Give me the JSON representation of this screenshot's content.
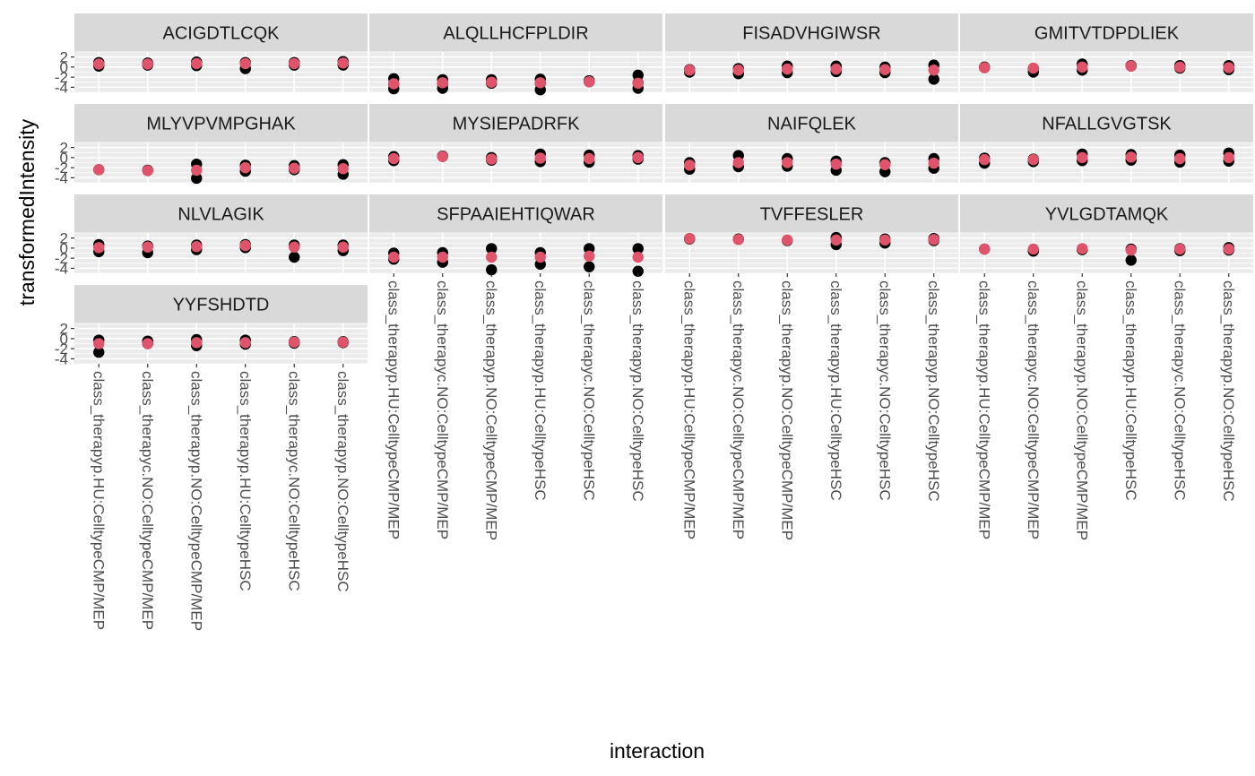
{
  "chart_data": {
    "type": "scatter",
    "facet_layout": {
      "columns": 4,
      "rows": 4
    },
    "xlabel": "interaction",
    "ylabel": "transformedIntensity",
    "categories": [
      "class_therapyp.HU:CelltypeCMP/MEP",
      "class_therapyc.NO:CelltypeCMP/MEP",
      "class_therapyp.NO:CelltypeCMP/MEP",
      "class_therapyp.HU:CelltypeHSC",
      "class_therapyc.NO:CelltypeHSC",
      "class_therapyp.NO:CelltypeHSC"
    ],
    "y_ticks": [
      "2",
      "0",
      "-2",
      "-4"
    ],
    "ylim": [
      -5,
      3
    ],
    "grid": true,
    "colors": {
      "panel_bg": "#ebebeb",
      "strip_bg": "#d9d9d9",
      "grid": "#ffffff",
      "observed": "#000000",
      "estimate": "#df536b"
    },
    "facets": [
      {
        "label": "ACIGDTLCQK",
        "observed": [
          [
            0.2,
            0.9
          ],
          [
            0.4,
            0.8
          ],
          [
            0.3,
            1.0
          ],
          [
            -0.3,
            0.9
          ],
          [
            0.4,
            0.9
          ],
          [
            0.4,
            1.1
          ]
        ],
        "estimate": [
          0.6,
          0.6,
          0.7,
          0.7,
          0.7,
          0.8
        ]
      },
      {
        "label": "ALQLLHCFPLDIR",
        "observed": [
          [
            -3.4,
            -2.3,
            -4.3
          ],
          [
            -3.3,
            -2.5,
            -4.2
          ],
          [
            -3.2,
            -2.5
          ],
          [
            -3.2,
            -2.4,
            -4.5
          ],
          [
            -2.7,
            -2.9
          ],
          [
            -1.6,
            -4.2,
            -3.1
          ]
        ],
        "estimate": [
          -3.3,
          -3.1,
          -3.0,
          -3.1,
          -2.9,
          -3.2
        ]
      },
      {
        "label": "FISADVHGIWSR",
        "observed": [
          [
            -0.5,
            -1.0
          ],
          [
            -0.3,
            -1.3
          ],
          [
            0.2,
            -1.1
          ],
          [
            0.2,
            -0.9
          ],
          [
            0.0,
            -1.1
          ],
          [
            0.4,
            -2.4
          ]
        ],
        "estimate": [
          -0.6,
          -0.6,
          -0.4,
          -0.4,
          -0.5,
          -0.6
        ]
      },
      {
        "label": "GMITVTDPDLIEK",
        "observed": [
          [
            0.0,
            -0.1
          ],
          [
            -0.3,
            -1.0
          ],
          [
            0.6,
            -0.6
          ],
          [
            0.2,
            0.3
          ],
          [
            0.3,
            -0.2
          ],
          [
            0.3,
            -0.5
          ]
        ],
        "estimate": [
          -0.1,
          -0.2,
          0.0,
          0.2,
          0.0,
          -0.1
        ]
      },
      {
        "label": "MLYVPVMPGHAK",
        "observed": [
          [
            -2.4
          ],
          [
            -2.5
          ],
          [
            -1.3,
            -4.1
          ],
          [
            -1.5,
            -2.7
          ],
          [
            -1.6,
            -2.4
          ],
          [
            -1.4,
            -3.3
          ]
        ],
        "estimate": [
          -2.4,
          -2.6,
          -2.5,
          -2.0,
          -2.1,
          -2.2
        ]
      },
      {
        "label": "MYSIEPADRFK",
        "observed": [
          [
            0.2,
            -0.6
          ],
          [
            0.3
          ],
          [
            0.0,
            -0.5
          ],
          [
            0.7,
            -0.8
          ],
          [
            0.5,
            -0.9
          ],
          [
            0.4,
            -0.3
          ]
        ],
        "estimate": [
          -0.2,
          0.2,
          -0.3,
          -0.1,
          -0.2,
          0.0
        ]
      },
      {
        "label": "NAIFQLEK",
        "observed": [
          [
            -1.0,
            -2.3
          ],
          [
            0.4,
            -1.8
          ],
          [
            -0.2,
            -1.7
          ],
          [
            -0.7,
            -2.5
          ],
          [
            -1.0,
            -2.8
          ],
          [
            -0.2,
            -2.1
          ]
        ],
        "estimate": [
          -1.5,
          -1.0,
          -1.0,
          -1.3,
          -1.4,
          -1.1
        ]
      },
      {
        "label": "NFALLGVGTSK",
        "observed": [
          [
            -0.1,
            -1.1
          ],
          [
            -0.3,
            -0.8
          ],
          [
            0.7,
            -0.6
          ],
          [
            0.6,
            -0.5
          ],
          [
            0.5,
            -0.9
          ],
          [
            0.9,
            -0.7
          ]
        ],
        "estimate": [
          -0.4,
          -0.4,
          0.0,
          0.1,
          -0.2,
          0.0
        ]
      },
      {
        "label": "NLVLAGIK",
        "observed": [
          [
            0.7,
            -0.7
          ],
          [
            0.4,
            -0.9
          ],
          [
            0.6,
            -0.3
          ],
          [
            0.7,
            0.1
          ],
          [
            0.6,
            -1.8
          ],
          [
            0.6,
            -0.5
          ]
        ],
        "estimate": [
          0.1,
          0.2,
          0.3,
          0.5,
          0.2,
          0.2
        ]
      },
      {
        "label": "SFPAAIEHTIQWAR",
        "observed": [
          [
            -1.0,
            -2.2
          ],
          [
            -0.9,
            -2.8
          ],
          [
            -0.1,
            -4.3
          ],
          [
            -0.9,
            -3.2
          ],
          [
            -0.1,
            -3.7
          ],
          [
            -0.1,
            -4.6
          ]
        ],
        "estimate": [
          -1.8,
          -1.8,
          -1.8,
          -1.8,
          -1.6,
          -1.8
        ]
      },
      {
        "label": "TVFFESLER",
        "observed": [
          [
            1.8,
            1.9
          ],
          [
            1.8
          ],
          [
            1.5
          ],
          [
            2.1,
            0.7
          ],
          [
            1.8,
            1.0
          ],
          [
            1.9,
            1.5
          ]
        ],
        "estimate": [
          1.9,
          1.7,
          1.6,
          1.6,
          1.6,
          1.7
        ]
      },
      {
        "label": "YVLGDTAMQK",
        "observed": [
          [
            -0.2
          ],
          [
            -0.4,
            -0.6
          ],
          [
            -0.2,
            -0.3
          ],
          [
            -0.2,
            -2.4
          ],
          [
            -0.1,
            -0.5
          ],
          [
            0.1,
            -0.4
          ]
        ],
        "estimate": [
          -0.2,
          -0.2,
          -0.1,
          -0.4,
          -0.2,
          -0.2
        ]
      },
      {
        "label": "YYFSHDTD",
        "observed": [
          [
            -0.3,
            -2.7
          ],
          [
            -1.0,
            -0.5
          ],
          [
            -0.2,
            -1.4
          ],
          [
            -0.3,
            -1.1
          ],
          [
            -0.6,
            -0.9
          ],
          [
            -0.6,
            -0.8
          ]
        ],
        "estimate": [
          -1.0,
          -1.0,
          -0.8,
          -0.8,
          -0.7,
          -0.7
        ]
      }
    ]
  }
}
